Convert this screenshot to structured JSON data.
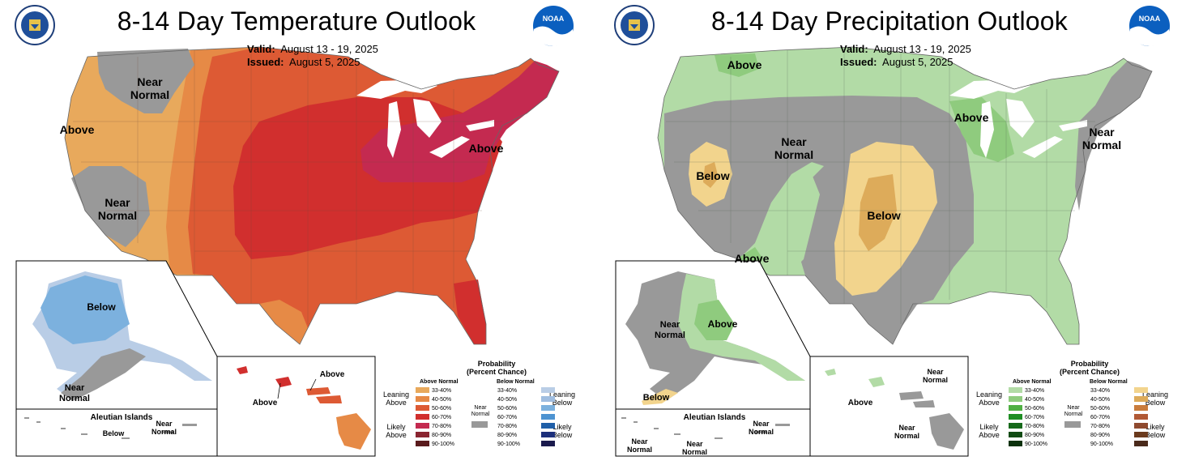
{
  "temperature": {
    "title": "8-14 Day Temperature Outlook",
    "valid_label": "Valid:",
    "valid_value": "August 13 - 19, 2025",
    "issued_label": "Issued:",
    "issued_value": "August 5, 2025",
    "map_labels": {
      "near_normal_nw": "Near\nNormal",
      "above_west": "Above",
      "near_normal_sw": "Near\nNormal",
      "above_ne": "Above"
    },
    "alaska_labels": {
      "below": "Below",
      "near_normal": "Near\nNormal"
    },
    "aleutian": {
      "title": "Aleutian Islands",
      "below": "Below",
      "near_normal": "Near\nNormal"
    },
    "hawaii_labels": {
      "above_1": "Above",
      "above_2": "Above"
    },
    "colors": {
      "above": [
        "#e8a95c",
        "#e68a46",
        "#dd5a34",
        "#d12f2e",
        "#c42a50",
        "#8a2530",
        "#5a1b1d"
      ],
      "below": [
        "#b9cde6",
        "#9fbde0",
        "#7cb1de",
        "#4d93d1",
        "#1f5fa8",
        "#1c2f7a",
        "#1a1a4d"
      ],
      "near_normal": "#999999"
    }
  },
  "precipitation": {
    "title": "8-14 Day Precipitation Outlook",
    "valid_label": "Valid:",
    "valid_value": "August 13 - 19, 2025",
    "issued_label": "Issued:",
    "issued_value": "August 5, 2025",
    "map_labels": {
      "above_nw": "Above",
      "near_normal_c": "Near\nNormal",
      "below_w": "Below",
      "below_c": "Below",
      "above_sw": "Above",
      "above_gl": "Above",
      "near_normal_ne": "Near\nNormal"
    },
    "alaska_labels": {
      "near_normal": "Near\nNormal",
      "above": "Above",
      "below": "Below"
    },
    "aleutian": {
      "title": "Aleutian Islands",
      "near_normal_1": "Near\nNormal",
      "near_normal_2": "Near\nNormal",
      "near_normal_3": "Near\nNormal"
    },
    "hawaii_labels": {
      "near_normal_1": "Near\nNormal",
      "above": "Above",
      "near_normal_2": "Near\nNormal"
    },
    "colors": {
      "above": [
        "#b2dba6",
        "#8fcb7e",
        "#4fb043",
        "#1e8e23",
        "#16691a",
        "#114b14",
        "#0c320d"
      ],
      "below": [
        "#f2d48d",
        "#ddab5a",
        "#c97c3c",
        "#b15935",
        "#8f4a2f",
        "#6b3a1d",
        "#4a2a1b"
      ],
      "near_normal": "#999999"
    }
  },
  "legend": {
    "title": "Probability\n(Percent Chance)",
    "above_normal": "Above Normal",
    "below_normal": "Below Normal",
    "ranges": [
      "33-40%",
      "40-50%",
      "50-60%",
      "60-70%",
      "70-80%",
      "80-90%",
      "90-100%"
    ],
    "leaning_above": "Leaning\nAbove",
    "likely_above": "Likely\nAbove",
    "leaning_below": "Leaning\nBelow",
    "likely_below": "Likely\nBelow",
    "near_normal": "Near\nNormal"
  },
  "logos": {
    "left": "department-of-commerce-seal",
    "right": "noaa-logo",
    "noaa_text": "NOAA"
  }
}
